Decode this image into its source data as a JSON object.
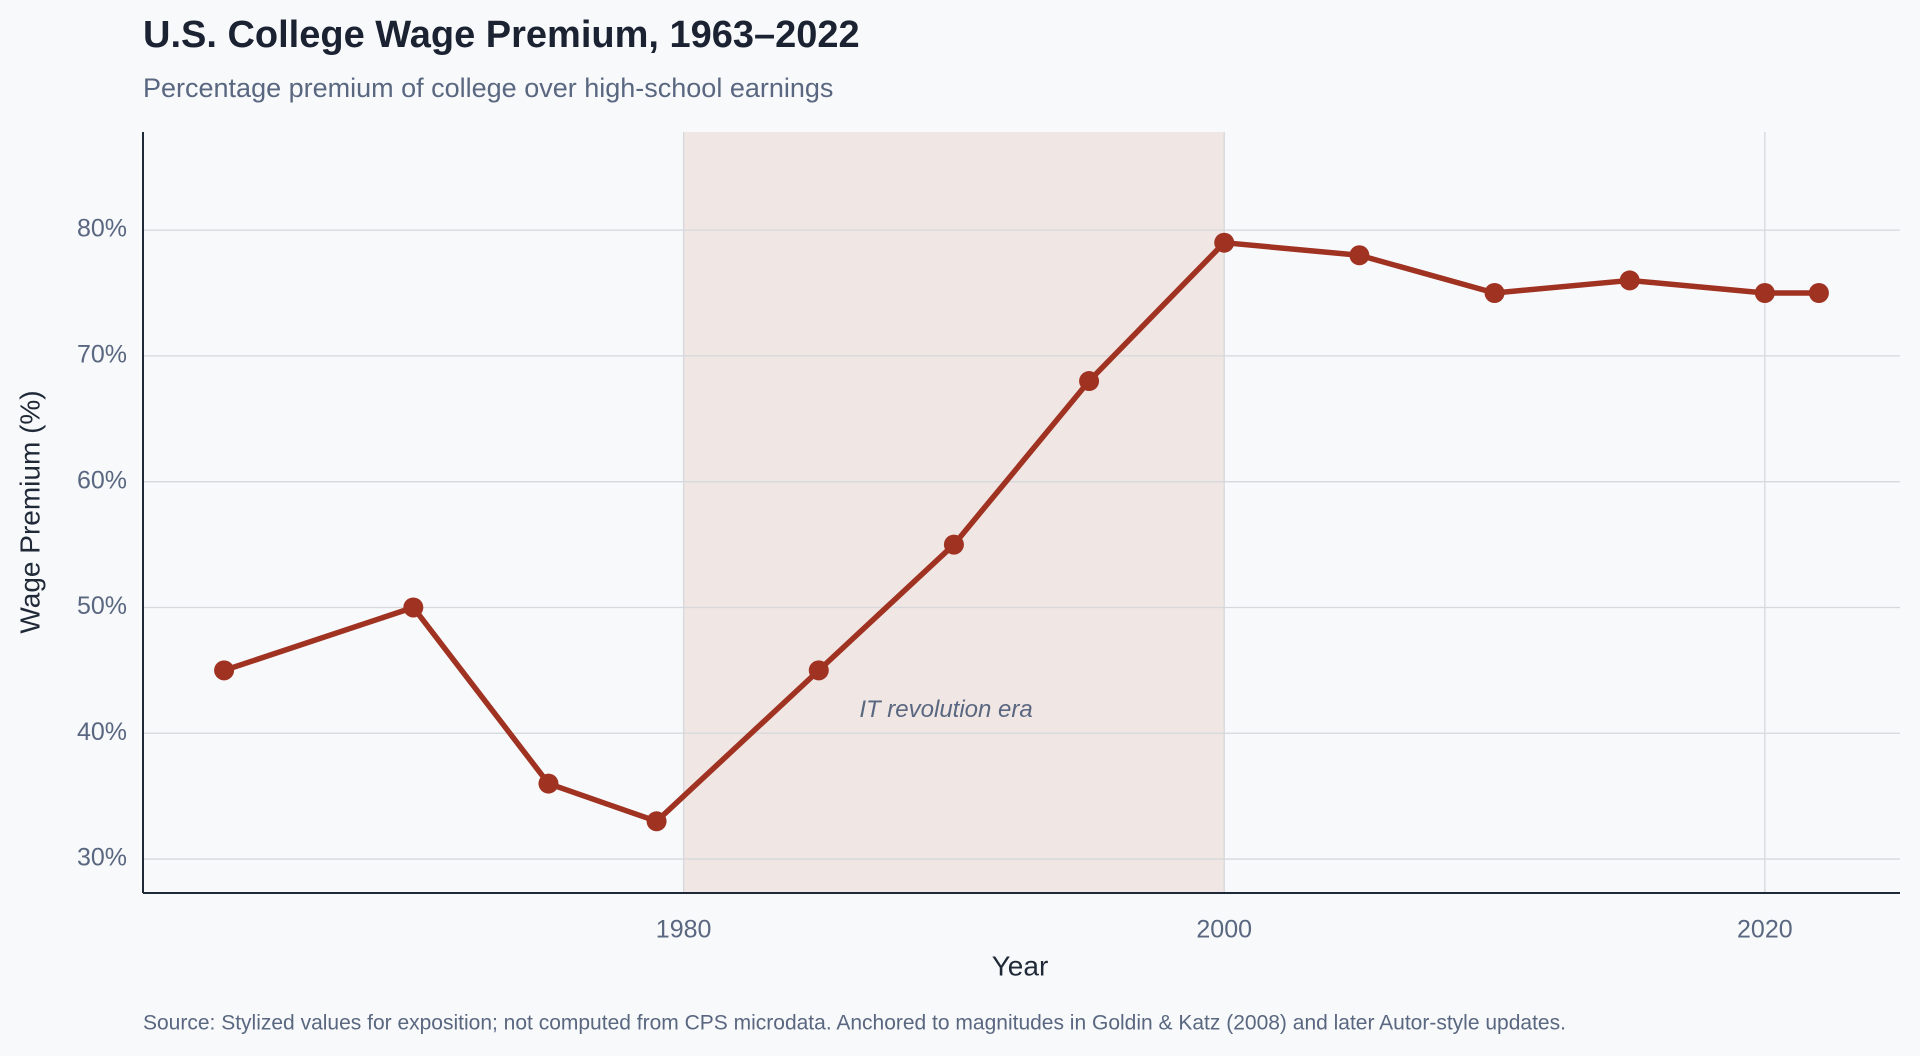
{
  "chart_data": {
    "type": "line",
    "title": "U.S. College Wage Premium, 1963–2022",
    "subtitle": "Percentage premium of college over high-school earnings",
    "x_label": "Year",
    "y_label": "Wage Premium (%)",
    "source": "Source: Stylized values for exposition; not computed from CPS microdata. Anchored to magnitudes in Goldin & Katz (2008) and later Autor-style updates.",
    "x": [
      1963,
      1970,
      1975,
      1979,
      1985,
      1990,
      1995,
      2000,
      2005,
      2010,
      2015,
      2020,
      2022
    ],
    "series": [
      {
        "name": "College wage premium",
        "color": "#a03222",
        "values": [
          45,
          50,
          36,
          33,
          45,
          55,
          68,
          79,
          78,
          75,
          76,
          75,
          75
        ]
      }
    ],
    "shaded_span": [
      1980,
      2000
    ],
    "shade_color": "#f0e6e4",
    "annotation": "IT revolution era",
    "xlim": [
      1960,
      2025
    ],
    "ylim": [
      27.3,
      87.8
    ],
    "xticks": [
      1980,
      2000,
      2020
    ],
    "yticks": [
      {
        "value": 30,
        "label": "30%"
      },
      {
        "value": 40,
        "label": "40%"
      },
      {
        "value": 50,
        "label": "50%"
      },
      {
        "value": 60,
        "label": "60%"
      },
      {
        "value": 70,
        "label": "70%"
      },
      {
        "value": 80,
        "label": "80%"
      }
    ],
    "grid": true
  }
}
